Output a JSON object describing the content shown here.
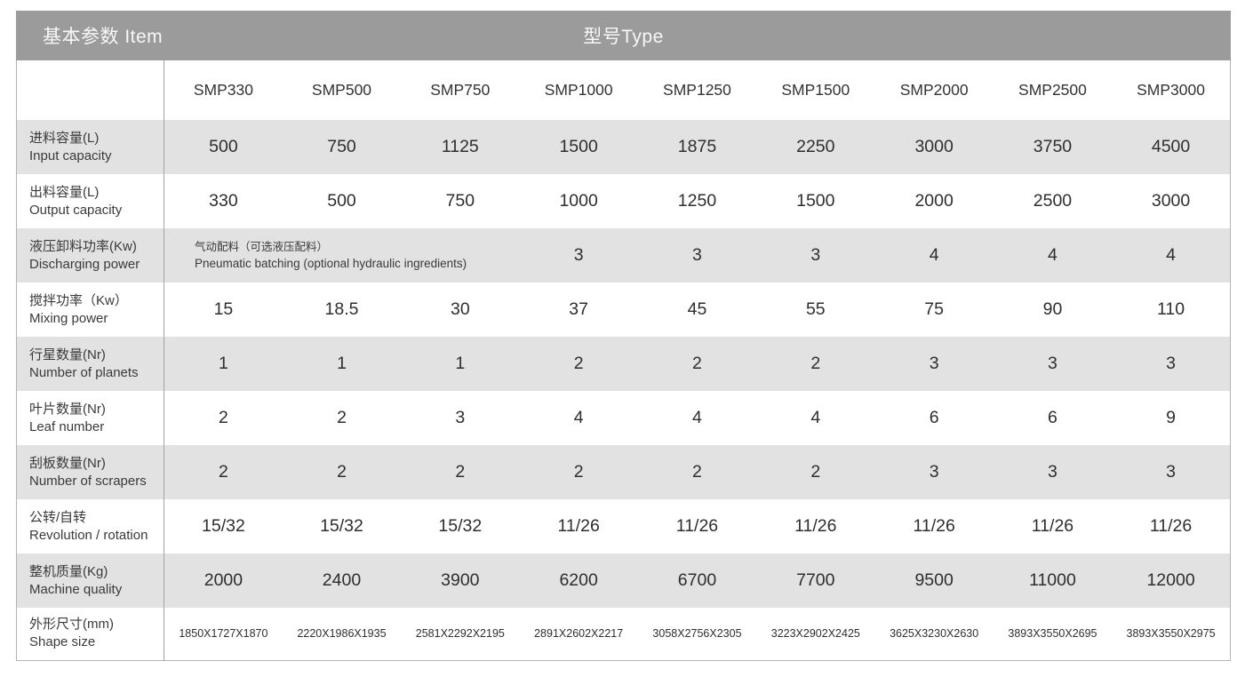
{
  "table": {
    "corner_header": "基本参数 Item",
    "type_header": "型号Type",
    "models": [
      "SMP330",
      "SMP500",
      "SMP750",
      "SMP1000",
      "SMP1250",
      "SMP1500",
      "SMP2000",
      "SMP2500",
      "SMP3000"
    ],
    "rows": [
      {
        "label_zh": "进料容量(L)",
        "label_en": "Input capacity",
        "values": [
          "500",
          "750",
          "1125",
          "1500",
          "1875",
          "2250",
          "3000",
          "3750",
          "4500"
        ]
      },
      {
        "label_zh": "出料容量(L)",
        "label_en": "Output capacity",
        "values": [
          "330",
          "500",
          "750",
          "1000",
          "1250",
          "1500",
          "2000",
          "2500",
          "3000"
        ]
      },
      {
        "label_zh": "液压卸料功率(Kw)",
        "label_en": "Discharging power",
        "note_zh": "气动配料（可选液压配料）",
        "note_en": "Pneumatic batching (optional hydraulic ingredients)",
        "note_span_models": [
          "SMP330",
          "SMP500",
          "SMP750"
        ],
        "values": [
          "3",
          "3",
          "3",
          "4",
          "4",
          "4"
        ]
      },
      {
        "label_zh": "搅拌功率（Kw）",
        "label_en": "Mixing power",
        "values": [
          "15",
          "18.5",
          "30",
          "37",
          "45",
          "55",
          "75",
          "90",
          "110"
        ]
      },
      {
        "label_zh": "行星数量(Nr)",
        "label_en": "Number of planets",
        "values": [
          "1",
          "1",
          "1",
          "2",
          "2",
          "2",
          "3",
          "3",
          "3"
        ]
      },
      {
        "label_zh": "叶片数量(Nr)",
        "label_en": "Leaf number",
        "values": [
          "2",
          "2",
          "3",
          "4",
          "4",
          "4",
          "6",
          "6",
          "9"
        ]
      },
      {
        "label_zh": "刮板数量(Nr)",
        "label_en": "Number of scrapers",
        "values": [
          "2",
          "2",
          "2",
          "2",
          "2",
          "2",
          "3",
          "3",
          "3"
        ]
      },
      {
        "label_zh": "公转/自转",
        "label_en": "Revolution / rotation",
        "values": [
          "15/32",
          "15/32",
          "15/32",
          "11/26",
          "11/26",
          "11/26",
          "11/26",
          "11/26",
          "11/26"
        ]
      },
      {
        "label_zh": "整机质量(Kg)",
        "label_en": "Machine quality",
        "values": [
          "2000",
          "2400",
          "3900",
          "6200",
          "6700",
          "7700",
          "9500",
          "11000",
          "12000"
        ]
      },
      {
        "label_zh": "外形尺寸(mm)",
        "label_en": "Shape size",
        "values": [
          "1850X1727X1870",
          "2220X1986X1935",
          "2581X2292X2195",
          "2891X2602X2217",
          "3058X2756X2305",
          "3223X2902X2425",
          "3625X3230X2630",
          "3893X3550X2695",
          "3893X3550X2975"
        ]
      }
    ]
  },
  "colors": {
    "header_band_bg": "#9b9b9b",
    "header_band_text": "#f7f7f7",
    "stripe_bg": "#e2e2e2",
    "row_bg": "#ffffff",
    "border": "#b3b3b3",
    "divider": "#a3a3a3",
    "text": "#333333"
  }
}
